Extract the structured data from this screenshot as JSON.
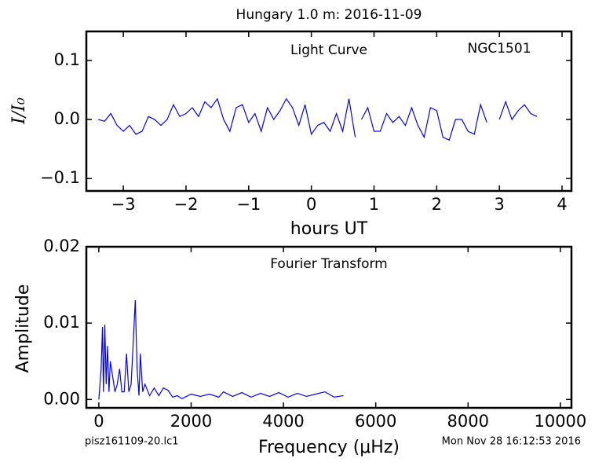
{
  "title": "Hungary 1.0 m:  2016-11-09",
  "footer_left": "pisz161109-20.lc1",
  "footer_right": "Mon Nov 28 16:12:53 2016",
  "chart_data": [
    {
      "type": "line",
      "annotations": [
        "Light Curve",
        "NGC1501"
      ],
      "x_label": "hours UT",
      "y_label": "I/I₀",
      "x": [
        -3.4,
        -3.3,
        -3.2,
        -3.1,
        -3.0,
        -2.9,
        -2.8,
        -2.7,
        -2.6,
        -2.5,
        -2.4,
        -2.3,
        -2.2,
        -2.1,
        -2.0,
        -1.9,
        -1.8,
        -1.7,
        -1.6,
        -1.5,
        -1.4,
        -1.3,
        -1.2,
        -1.1,
        -1.0,
        -0.9,
        -0.8,
        -0.7,
        -0.6,
        -0.5,
        -0.4,
        -0.3,
        -0.2,
        -0.1,
        0.0,
        0.1,
        0.2,
        0.3,
        0.4,
        0.5,
        0.6,
        0.7,
        0.75,
        0.8,
        0.9,
        1.0,
        1.1,
        1.2,
        1.3,
        1.4,
        1.5,
        1.6,
        1.7,
        1.8,
        1.9,
        2.0,
        2.1,
        2.2,
        2.3,
        2.4,
        2.5,
        2.6,
        2.7,
        2.8,
        2.9,
        3.0,
        3.1,
        3.2,
        3.3,
        3.4,
        3.5,
        3.6
      ],
      "series": [
        {
          "color": "#0000ff",
          "values": [
            0.0,
            -0.003,
            0.01,
            -0.01,
            -0.02,
            -0.01,
            -0.025,
            -0.02,
            0.005,
            0.0,
            -0.01,
            0.0,
            0.025,
            0.005,
            0.01,
            0.02,
            0.005,
            0.03,
            0.02,
            0.035,
            0.0,
            -0.02,
            0.02,
            0.025,
            -0.005,
            0.01,
            -0.02,
            0.02,
            0.0,
            0.015,
            0.035,
            0.02,
            -0.01,
            0.025,
            -0.025,
            -0.01,
            -0.005,
            -0.02,
            0.01,
            -0.02,
            0.035,
            -0.03,
            null,
            0.0,
            0.02,
            -0.02,
            -0.02,
            0.01,
            -0.005,
            0.005,
            -0.01,
            0.02,
            -0.01,
            -0.03,
            0.02,
            0.015,
            -0.03,
            -0.035,
            0.0,
            0.0,
            -0.02,
            -0.025,
            0.025,
            -0.005,
            null,
            0.0,
            0.03,
            0.0,
            0.015,
            0.025,
            0.01,
            0.005
          ]
        }
      ],
      "xlim": [
        -3.59,
        4.15
      ],
      "xticks": [
        {
          "value": -3,
          "label": "−3"
        },
        {
          "value": -2,
          "label": "−2"
        },
        {
          "value": -1,
          "label": "−1"
        },
        0,
        1,
        2,
        3,
        4
      ],
      "ylim": [
        -0.121,
        0.149
      ],
      "yticks": [
        {
          "value": -0.1,
          "label": "−0.1"
        },
        {
          "value": 0,
          "label": "0.0"
        },
        {
          "value": 0.1,
          "label": "0.1"
        }
      ]
    },
    {
      "type": "line",
      "annotations": [
        "Fourier Transform"
      ],
      "x_label": "Frequency (μHz)",
      "y_label": "Amplitude",
      "x": [
        0,
        50,
        80,
        100,
        130,
        160,
        190,
        220,
        250,
        300,
        350,
        400,
        450,
        500,
        550,
        600,
        650,
        700,
        750,
        790,
        830,
        870,
        900,
        950,
        1000,
        1100,
        1200,
        1300,
        1400,
        1500,
        1600,
        1700,
        1800,
        2000,
        2200,
        2400,
        2600,
        2700,
        2900,
        3100,
        3300,
        3500,
        3700,
        3900,
        4100,
        4300,
        4500,
        4700,
        4900,
        5100,
        5300
      ],
      "series": [
        {
          "color": "#0000ff",
          "values": [
            0,
            0.004,
            0.0095,
            0.001,
            0.0098,
            0.002,
            0.007,
            0.001,
            0.005,
            0.003,
            0.001,
            0.002,
            0.004,
            0.001,
            0.001,
            0.006,
            0.001,
            0.002,
            0.008,
            0.013,
            0.004,
            0.0005,
            0.006,
            0.001,
            0.002,
            0.0005,
            0.0015,
            0.0005,
            0.0015,
            0.0012,
            0.0003,
            0.0005,
            0.0001,
            0.0007,
            0.0004,
            0.0007,
            0.0003,
            0.001,
            0.0004,
            0.0009,
            0.0003,
            0.0008,
            0.0004,
            0.0009,
            0.0003,
            0.0008,
            0.0004,
            0.0007,
            0.001,
            0.0003,
            0.0005
          ]
        }
      ],
      "xlim": [
        -270,
        10240
      ],
      "xticks": [
        0,
        2000,
        4000,
        6000,
        8000,
        10000
      ],
      "ylim": [
        -0.0011,
        0.02
      ],
      "yticks": [
        {
          "value": 0,
          "label": "0.00"
        },
        0.01,
        0.02
      ]
    }
  ]
}
